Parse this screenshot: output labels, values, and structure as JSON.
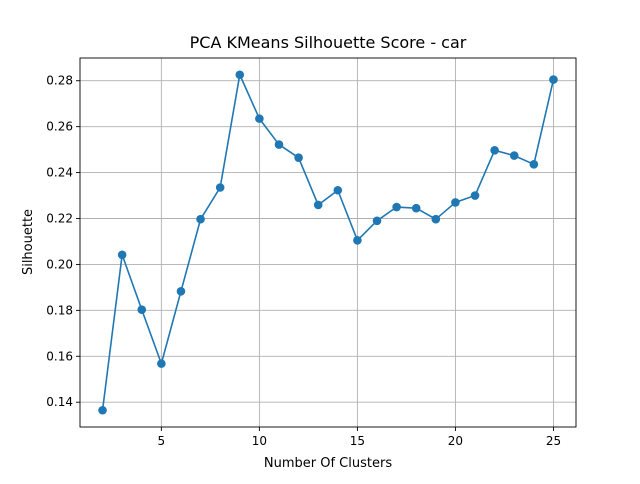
{
  "chart_data": {
    "type": "line",
    "title": "PCA KMeans Silhouette Score - car",
    "xlabel": "Number Of Clusters",
    "ylabel": "Silhouette",
    "x": [
      2,
      3,
      4,
      5,
      6,
      7,
      8,
      9,
      10,
      11,
      12,
      13,
      14,
      15,
      16,
      17,
      18,
      19,
      20,
      21,
      22,
      23,
      24,
      25
    ],
    "y": [
      0.1365,
      0.2042,
      0.1803,
      0.1568,
      0.1883,
      0.2197,
      0.2335,
      0.2826,
      0.2635,
      0.2522,
      0.2465,
      0.2259,
      0.2323,
      0.2105,
      0.219,
      0.225,
      0.2245,
      0.2197,
      0.227,
      0.23,
      0.2497,
      0.2474,
      0.2436,
      0.2805
    ],
    "xlim": [
      0.85,
      26.15
    ],
    "ylim": [
      0.1292,
      0.2899
    ],
    "xticks": [
      5,
      10,
      15,
      20,
      25
    ],
    "xtick_labels": [
      "5",
      "10",
      "15",
      "20",
      "25"
    ],
    "yticks": [
      0.14,
      0.16,
      0.18,
      0.2,
      0.22,
      0.24,
      0.26,
      0.28
    ],
    "ytick_labels": [
      "0.14",
      "0.16",
      "0.18",
      "0.20",
      "0.22",
      "0.24",
      "0.26",
      "0.28"
    ],
    "grid": true,
    "marker": "circle",
    "colors": {
      "line": "#1f77b4",
      "grid": "#b0b0b0",
      "axis": "#000000"
    }
  }
}
